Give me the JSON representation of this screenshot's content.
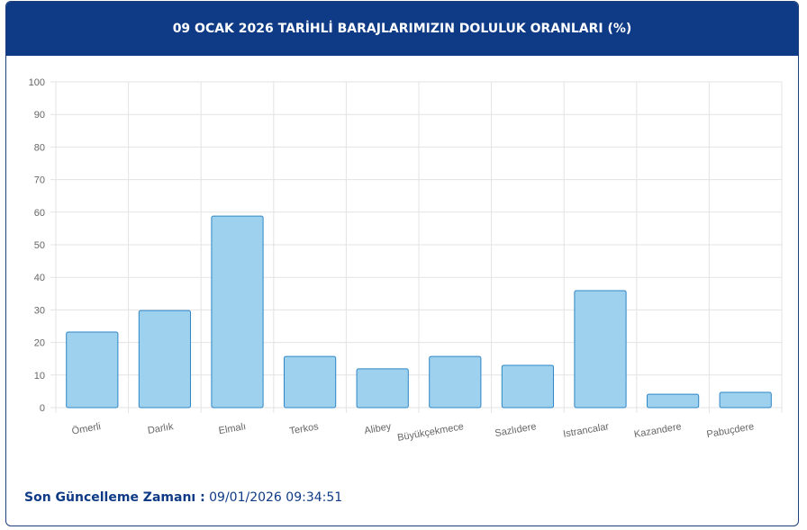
{
  "chart_data": {
    "type": "bar",
    "title": "09 OCAK 2026 TARİHLİ BARAJLARIMIZIN DOLULUK ORANLARI (%)",
    "categories": [
      "Ömerli",
      "Darlık",
      "Elmalı",
      "Terkos",
      "Alibey",
      "Büyükçekmece",
      "Sazlıdere",
      "Istrancalar",
      "Kazandere",
      "Pabuçdere"
    ],
    "values": [
      23.2,
      29.8,
      58.8,
      15.7,
      11.9,
      15.7,
      13.0,
      35.9,
      4.1,
      4.7
    ],
    "color": "#9dd1ee",
    "border_color": "#2f86c6",
    "ylim": [
      0,
      100
    ],
    "yticks": [
      0,
      10,
      20,
      30,
      40,
      50,
      60,
      70,
      80,
      90,
      100
    ],
    "grid": true
  },
  "footer": {
    "label": "Son Güncelleme Zamanı :",
    "value": "09/01/2026 09:34:51"
  }
}
